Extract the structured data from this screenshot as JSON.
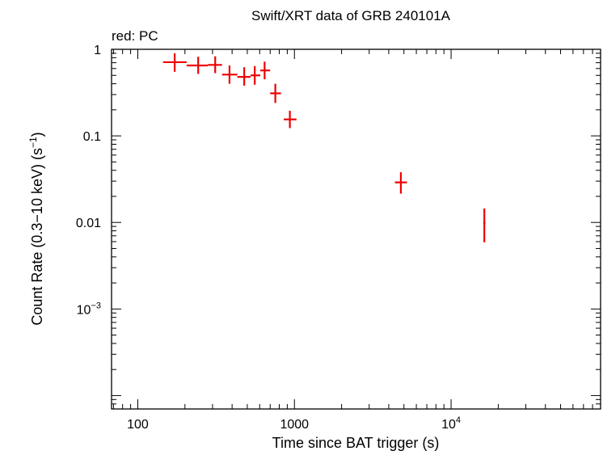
{
  "chart_data": {
    "type": "scatter",
    "title": "Swift/XRT data of GRB 240101A",
    "subtitle": "red: PC",
    "xlabel": "Time since BAT trigger (s)",
    "ylabel": "Count Rate (0.3−10 keV) (s",
    "ylabel_sup": "−1",
    "ylabel_end": ")",
    "xscale": "log",
    "yscale": "log",
    "xlim": [
      68,
      90000
    ],
    "ylim": [
      7e-05,
      1.0
    ],
    "grid": false,
    "x_ticks": [
      {
        "value": 100,
        "base": "100",
        "sup": ""
      },
      {
        "value": 1000,
        "base": "1000",
        "sup": ""
      },
      {
        "value": 10000,
        "base": "10",
        "sup": "4"
      }
    ],
    "y_ticks": [
      {
        "value": 1,
        "base": "1",
        "sup": ""
      },
      {
        "value": 0.1,
        "base": "0.1",
        "sup": ""
      },
      {
        "value": 0.01,
        "base": "0.01",
        "sup": ""
      },
      {
        "value": 0.001,
        "base": "10",
        "sup": "−3"
      }
    ],
    "series": [
      {
        "color": "#ee0000",
        "points": [
          {
            "x": 172,
            "xlo": 145,
            "xhi": 205,
            "y": 0.71,
            "ylo": 0.55,
            "yhi": 0.9
          },
          {
            "x": 243,
            "xlo": 205,
            "xhi": 280,
            "y": 0.65,
            "ylo": 0.52,
            "yhi": 0.82
          },
          {
            "x": 312,
            "xlo": 280,
            "xhi": 345,
            "y": 0.66,
            "ylo": 0.53,
            "yhi": 0.83
          },
          {
            "x": 385,
            "xlo": 345,
            "xhi": 432,
            "y": 0.51,
            "ylo": 0.4,
            "yhi": 0.65
          },
          {
            "x": 478,
            "xlo": 432,
            "xhi": 525,
            "y": 0.48,
            "ylo": 0.38,
            "yhi": 0.62
          },
          {
            "x": 558,
            "xlo": 525,
            "xhi": 605,
            "y": 0.5,
            "ylo": 0.39,
            "yhi": 0.64
          },
          {
            "x": 645,
            "xlo": 605,
            "xhi": 700,
            "y": 0.57,
            "ylo": 0.45,
            "yhi": 0.72
          },
          {
            "x": 755,
            "xlo": 700,
            "xhi": 820,
            "y": 0.31,
            "ylo": 0.24,
            "yhi": 0.4
          },
          {
            "x": 935,
            "xlo": 855,
            "xhi": 1030,
            "y": 0.155,
            "ylo": 0.123,
            "yhi": 0.195
          },
          {
            "x": 4780,
            "xlo": 4380,
            "xhi": 5230,
            "y": 0.029,
            "ylo": 0.0215,
            "yhi": 0.038
          },
          {
            "x": 16300,
            "xlo": 16050,
            "xhi": 16550,
            "y": 0.0098,
            "ylo": 0.0059,
            "yhi": 0.0145
          }
        ]
      }
    ]
  }
}
